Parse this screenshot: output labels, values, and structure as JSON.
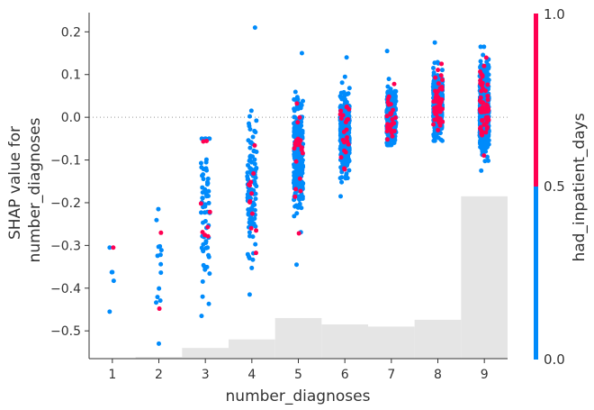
{
  "chart_data": {
    "type": "scatter",
    "subtype": "shap-dependence",
    "xlabel": "number_diagnoses",
    "ylabel_lines": [
      "SHAP value for",
      "number_diagnoses"
    ],
    "xlim": [
      0.5,
      9.5
    ],
    "ylim": [
      -0.565,
      0.245
    ],
    "x_ticks": [
      1,
      2,
      3,
      4,
      5,
      6,
      7,
      8,
      9
    ],
    "y_ticks": [
      0.2,
      0.1,
      0.0,
      -0.1,
      -0.2,
      -0.3,
      -0.4,
      -0.5
    ],
    "y_tick_labels": [
      "0.2",
      "0.1",
      "0.0",
      "−0.1",
      "−0.2",
      "−0.3",
      "−0.4",
      "−0.5"
    ],
    "zero_line": 0.0,
    "histogram": [
      {
        "x": 1,
        "top": -0.566
      },
      {
        "x": 2,
        "top": -0.561
      },
      {
        "x": 3,
        "top": -0.54
      },
      {
        "x": 4,
        "top": -0.52
      },
      {
        "x": 5,
        "top": -0.47
      },
      {
        "x": 6,
        "top": -0.485
      },
      {
        "x": 7,
        "top": -0.49
      },
      {
        "x": 8,
        "top": -0.474
      },
      {
        "x": 9,
        "top": -0.185
      }
    ],
    "clusters": [
      {
        "x": 1,
        "n_low": 5,
        "n_high": 1,
        "min": -0.455,
        "max": -0.305,
        "center": -0.38,
        "spread": 0.05,
        "jitter": 0.06
      },
      {
        "x": 2,
        "n_low": 14,
        "n_high": 2,
        "min": -0.53,
        "max": -0.215,
        "center": -0.37,
        "spread": 0.08,
        "jitter": 0.07
      },
      {
        "x": 3,
        "n_low": 70,
        "n_high": 8,
        "min": -0.465,
        "max": -0.05,
        "center": -0.22,
        "spread": 0.11,
        "jitter": 0.1
      },
      {
        "x": 4,
        "n_low": 110,
        "n_high": 12,
        "min": -0.415,
        "max": 0.21,
        "center": -0.17,
        "spread": 0.075,
        "jitter": 0.1
      },
      {
        "x": 5,
        "n_low": 330,
        "n_high": 22,
        "min": -0.345,
        "max": 0.15,
        "center": -0.09,
        "spread": 0.06,
        "jitter": 0.1
      },
      {
        "x": 6,
        "n_low": 430,
        "n_high": 22,
        "min": -0.185,
        "max": 0.14,
        "center": -0.04,
        "spread": 0.045,
        "jitter": 0.1
      },
      {
        "x": 7,
        "n_low": 310,
        "n_high": 28,
        "min": -0.065,
        "max": 0.155,
        "center": 0.0,
        "spread": 0.03,
        "jitter": 0.1
      },
      {
        "x": 8,
        "n_low": 390,
        "n_high": 45,
        "min": -0.055,
        "max": 0.175,
        "center": 0.03,
        "spread": 0.035,
        "jitter": 0.1
      },
      {
        "x": 9,
        "n_low": 560,
        "n_high": 55,
        "min": -0.125,
        "max": 0.165,
        "center": 0.02,
        "spread": 0.05,
        "jitter": 0.1
      }
    ],
    "colorbar": {
      "label": "had_inpatient_days",
      "tick_labels": [
        "1.0",
        "0.5",
        "0.0"
      ],
      "low_color": "#008bfb",
      "high_color": "#ff0052"
    },
    "colors": {
      "low": "#008bfb",
      "high": "#ff0052",
      "histogram": "#e5e5e5",
      "zero_line": "#999999",
      "axis": "#333333"
    }
  }
}
